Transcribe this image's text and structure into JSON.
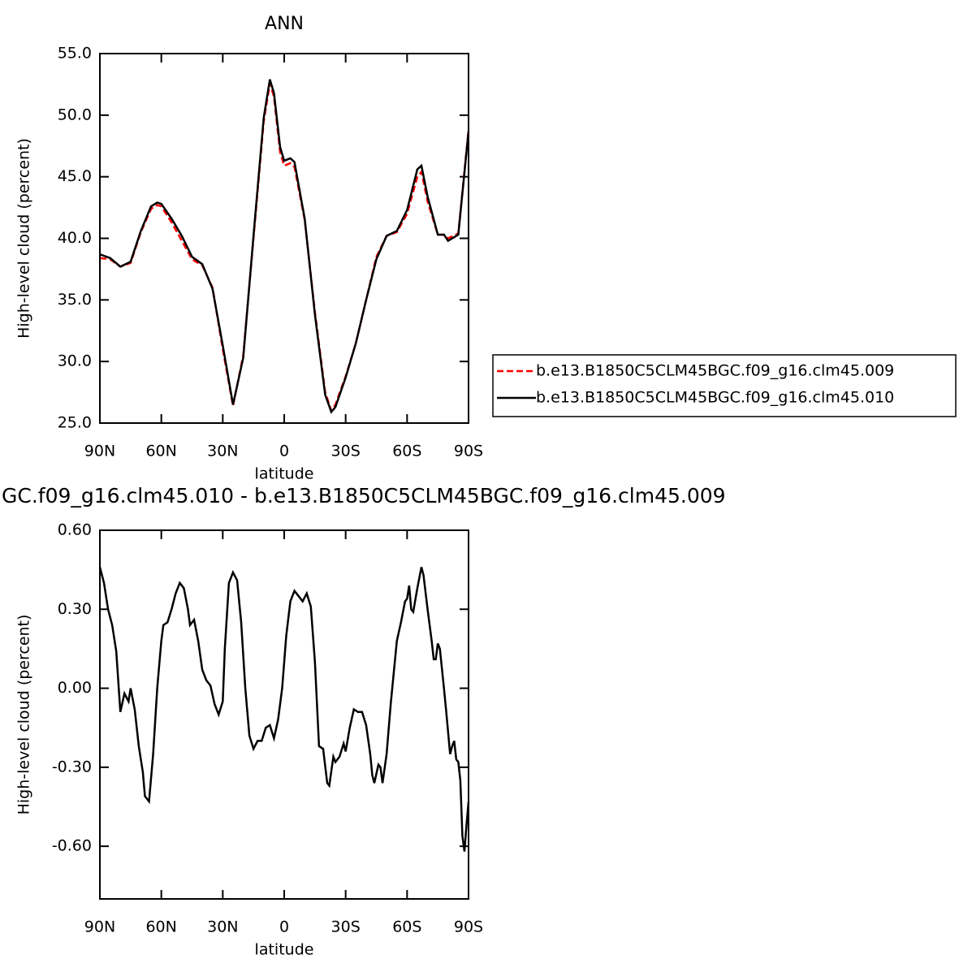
{
  "chart_data": [
    {
      "type": "line",
      "title": "ANN",
      "xlabel": "latitude",
      "ylabel": "High-level cloud (percent)",
      "x": [
        90,
        85,
        80,
        75,
        70,
        65,
        62,
        60,
        55,
        50,
        45,
        40,
        35,
        30,
        25,
        20,
        15,
        10,
        7,
        5,
        2,
        0,
        -3,
        -5,
        -10,
        -15,
        -20,
        -23,
        -25,
        -30,
        -35,
        -40,
        -45,
        -50,
        -55,
        -60,
        -65,
        -67,
        -70,
        -75,
        -78,
        -80,
        -85,
        -90
      ],
      "series": [
        {
          "name": "b.e13.B1850C5CLM45BGC.f09_g16.clm45.009",
          "color": "#ff0000",
          "line_style": "dashed",
          "values": [
            38.4,
            38.3,
            37.7,
            38.0,
            40.5,
            42.4,
            42.7,
            42.6,
            41.3,
            39.8,
            38.3,
            37.8,
            36.0,
            31.0,
            26.4,
            30.5,
            40.0,
            49.5,
            52.6,
            51.5,
            47.0,
            45.9,
            46.1,
            45.8,
            41.5,
            34.0,
            27.5,
            26.0,
            26.5,
            28.8,
            31.5,
            35.0,
            38.5,
            40.2,
            40.5,
            42.0,
            45.0,
            45.4,
            43.0,
            40.3,
            40.3,
            40.0,
            40.4,
            48.8
          ]
        },
        {
          "name": "b.e13.B1850C5CLM45BGC.f09_g16.clm45.010",
          "color": "#000000",
          "line_style": "solid",
          "values": [
            38.7,
            38.4,
            37.7,
            38.1,
            40.6,
            42.6,
            42.9,
            42.8,
            41.6,
            40.2,
            38.5,
            37.9,
            35.9,
            31.3,
            26.5,
            30.3,
            40.2,
            49.8,
            52.9,
            51.8,
            47.4,
            46.3,
            46.5,
            46.2,
            41.6,
            33.8,
            27.3,
            25.9,
            26.3,
            28.7,
            31.5,
            35.0,
            38.3,
            40.2,
            40.6,
            42.3,
            45.6,
            45.9,
            43.4,
            40.3,
            40.3,
            39.8,
            40.3,
            48.7
          ]
        }
      ],
      "xlim": [
        90,
        -90
      ],
      "xticks": [
        {
          "value": 90,
          "label": "90N"
        },
        {
          "value": 60,
          "label": "60N"
        },
        {
          "value": 30,
          "label": "30N"
        },
        0,
        {
          "value": -30,
          "label": "30S"
        },
        {
          "value": -60,
          "label": "60S"
        },
        {
          "value": -90,
          "label": "90S"
        }
      ],
      "ylim": [
        25,
        55
      ],
      "yticks": [
        {
          "value": 25,
          "label": "25.0"
        },
        {
          "value": 30,
          "label": "30.0"
        },
        {
          "value": 35,
          "label": "35.0"
        },
        {
          "value": 40,
          "label": "40.0"
        },
        {
          "value": 45,
          "label": "45.0"
        },
        {
          "value": 50,
          "label": "50.0"
        },
        {
          "value": 55,
          "label": "55.0"
        }
      ],
      "legend": "outside-right"
    },
    {
      "type": "line",
      "title": "GC.f09_g16.clm45.010 - b.e13.B1850C5CLM45BGC.f09_g16.clm45.009",
      "xlabel": "latitude",
      "ylabel": "High-level cloud (percent)",
      "x": [
        90,
        88,
        86,
        84,
        82,
        80,
        78,
        76,
        75,
        73,
        71,
        69,
        68,
        66,
        64,
        62,
        60,
        59,
        57,
        55,
        53,
        51,
        49,
        47,
        46,
        44,
        42,
        40,
        38,
        36,
        34,
        32,
        30,
        29,
        27,
        25,
        23,
        21,
        19,
        17,
        15,
        13,
        11,
        9,
        7,
        5,
        3,
        1,
        -1,
        -3,
        -5,
        -7,
        -9,
        -11,
        -13,
        -15,
        -17,
        -19,
        -21,
        -22,
        -24,
        -25,
        -27,
        -29,
        -30,
        -32,
        -34,
        -36,
        -38,
        -40,
        -42,
        -43,
        -44,
        -46,
        -47,
        -48,
        -50,
        -52,
        -54,
        -55,
        -57,
        -59,
        -60,
        -61,
        -62,
        -63,
        -65,
        -67,
        -68,
        -70,
        -72,
        -73,
        -74,
        -75,
        -76,
        -78,
        -79,
        -81,
        -82,
        -83,
        -84,
        -85,
        -86,
        -87,
        -88,
        -89,
        -90
      ],
      "series": [
        {
          "color": "#000000",
          "line_style": "solid",
          "values": [
            0.46,
            0.4,
            0.3,
            0.24,
            0.14,
            -0.09,
            -0.02,
            -0.05,
            0.0,
            -0.08,
            -0.22,
            -0.32,
            -0.41,
            -0.43,
            -0.25,
            0.0,
            0.18,
            0.24,
            0.25,
            0.3,
            0.36,
            0.4,
            0.38,
            0.3,
            0.24,
            0.26,
            0.18,
            0.07,
            0.03,
            0.01,
            -0.06,
            -0.1,
            -0.05,
            0.15,
            0.4,
            0.44,
            0.41,
            0.25,
            0.0,
            -0.18,
            -0.23,
            -0.2,
            -0.2,
            -0.15,
            -0.14,
            -0.19,
            -0.12,
            0.0,
            0.2,
            0.33,
            0.37,
            0.35,
            0.33,
            0.36,
            0.31,
            0.1,
            -0.22,
            -0.23,
            -0.36,
            -0.37,
            -0.26,
            -0.28,
            -0.26,
            -0.21,
            -0.24,
            -0.15,
            -0.08,
            -0.09,
            -0.09,
            -0.14,
            -0.25,
            -0.33,
            -0.36,
            -0.29,
            -0.3,
            -0.36,
            -0.25,
            -0.06,
            0.1,
            0.18,
            0.25,
            0.33,
            0.34,
            0.39,
            0.3,
            0.29,
            0.38,
            0.46,
            0.43,
            0.3,
            0.18,
            0.11,
            0.11,
            0.17,
            0.15,
            0.0,
            -0.08,
            -0.25,
            -0.22,
            -0.2,
            -0.27,
            -0.28,
            -0.35,
            -0.56,
            -0.62,
            -0.52,
            -0.43
          ]
        }
      ],
      "xlim": [
        90,
        -90
      ],
      "xticks": [
        {
          "value": 90,
          "label": "90N"
        },
        {
          "value": 60,
          "label": "60N"
        },
        {
          "value": 30,
          "label": "30N"
        },
        0,
        {
          "value": -30,
          "label": "30S"
        },
        {
          "value": -60,
          "label": "60S"
        },
        {
          "value": -90,
          "label": "90S"
        }
      ],
      "ylim": [
        -0.8,
        0.6
      ],
      "yticks": [
        {
          "value": -0.6,
          "label": "-0.60"
        },
        {
          "value": -0.3,
          "label": "-0.30"
        },
        {
          "value": 0,
          "label": "0.00"
        },
        {
          "value": 0.3,
          "label": "0.30"
        },
        {
          "value": 0.6,
          "label": "0.60"
        }
      ]
    }
  ]
}
